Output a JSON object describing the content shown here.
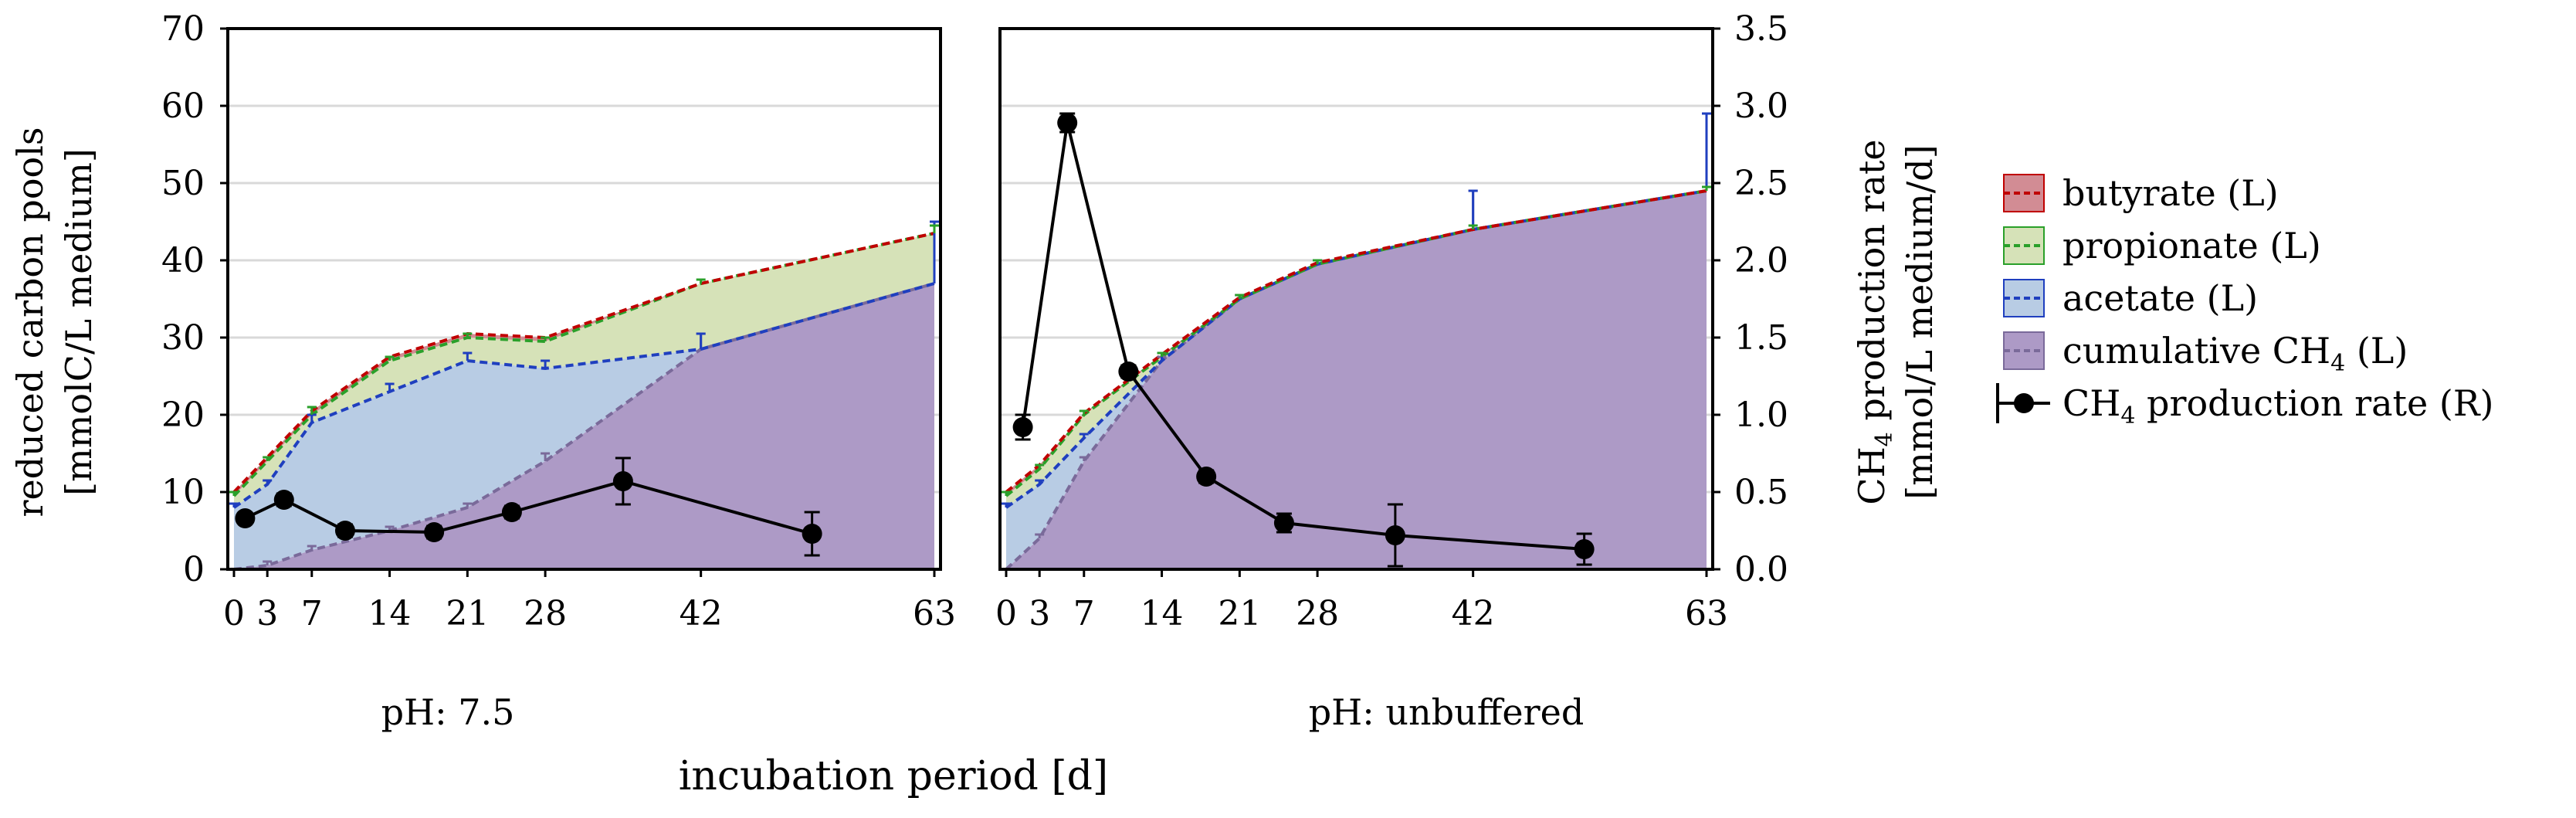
{
  "colors": {
    "butyrate_fill": "#d28c94",
    "butyrate_line": "#c00000",
    "propionate_fill": "#d6e2b8",
    "propionate_line": "#2aa02a",
    "acetate_fill": "#b8cce4",
    "acetate_line": "#1f3fbf",
    "ch4_fill": "#ad9ac6",
    "ch4_line": "#7a6a9a",
    "rate": "#000000",
    "grid": "#d9d9d9"
  },
  "chart_data": {
    "type": "area",
    "xlabel": "incubation period [d]",
    "ylabel_left": [
      "reduced carbon pools",
      "[mmolC/L medium]"
    ],
    "ylabel_right": [
      "CH4 production rate",
      "[mmol/L medium/d]"
    ],
    "ylabel_right_parts": {
      "l1_pre": "CH",
      "l1_sub": "4",
      "l1_post": " production rate",
      "l2": "[mmol/L medium/d]"
    },
    "xlim": [
      0,
      63
    ],
    "ylim_left": [
      0,
      70
    ],
    "ylim_right": [
      0,
      3.5
    ],
    "xticks": [
      0,
      3,
      7,
      14,
      21,
      28,
      42,
      63
    ],
    "xtick_labels": [
      "0",
      "3",
      "7",
      "14",
      "21",
      "28",
      "42",
      "63"
    ],
    "yticks_left": [
      0,
      10,
      20,
      30,
      40,
      50,
      60,
      70
    ],
    "ytick_labels_left": [
      "0",
      "10",
      "20",
      "30",
      "40",
      "50",
      "60",
      "70"
    ],
    "yticks_right": [
      0,
      0.5,
      1,
      1.5,
      2,
      2.5,
      3,
      3.5
    ],
    "ytick_labels_right": [
      "0.0",
      "0.5",
      "1.0",
      "1.5",
      "2.0",
      "2.5",
      "3.0",
      "3.5"
    ],
    "legend": [
      {
        "key": "butyrate",
        "pre": "butyrate (L)",
        "sub": "",
        "post": ""
      },
      {
        "key": "propionate",
        "pre": "propionate (L)",
        "sub": "",
        "post": ""
      },
      {
        "key": "acetate",
        "pre": "acetate (L)",
        "sub": "",
        "post": ""
      },
      {
        "key": "ch4",
        "pre": "cumulative CH",
        "sub": "4",
        "post": " (L)"
      },
      {
        "key": "rate",
        "pre": "CH",
        "sub": "4",
        "post": " production rate (R)"
      }
    ],
    "panels": [
      {
        "subtitle": "pH: 7.5",
        "x": [
          0,
          3,
          7,
          14,
          21,
          28,
          42,
          63
        ],
        "ch4_cum": [
          0,
          0.5,
          2.5,
          5,
          8,
          14,
          28.5,
          37
        ],
        "acetate_cum": [
          8,
          11,
          19,
          23,
          27,
          26,
          28.5,
          37
        ],
        "propionate_cum": [
          9.5,
          14,
          20,
          27,
          30,
          29.5,
          37,
          43.5
        ],
        "butyrate_cum": [
          10,
          14.5,
          20.5,
          27.5,
          30.5,
          30,
          37,
          43.5
        ],
        "ch4_err": [
          0,
          0.5,
          0.5,
          0.5,
          0.5,
          1,
          2,
          8
        ],
        "acetate_err": [
          0.5,
          0.5,
          1,
          1,
          1,
          1,
          2,
          8
        ],
        "propionate_err": [
          0.5,
          0.5,
          1,
          0.5,
          0.5,
          0.5,
          0.5,
          1
        ],
        "rate_x": [
          1,
          4.5,
          10,
          18,
          25,
          35,
          52
        ],
        "rate_y": [
          0.33,
          0.45,
          0.25,
          0.24,
          0.37,
          0.57,
          0.23
        ],
        "rate_err": [
          0.03,
          0.04,
          0.04,
          0.04,
          0.04,
          0.15,
          0.14
        ]
      },
      {
        "subtitle": "pH: unbuffered",
        "x": [
          0,
          3,
          7,
          14,
          21,
          28,
          42,
          63
        ],
        "ch4_cum": [
          0,
          4,
          14,
          27,
          35,
          39.5,
          44,
          49
        ],
        "acetate_cum": [
          8,
          11,
          17,
          27,
          35,
          39.5,
          44,
          49
        ],
        "propionate_cum": [
          9.5,
          13,
          20,
          27.5,
          35,
          39.5,
          44,
          49
        ],
        "butyrate_cum": [
          10,
          13.5,
          20.2,
          27.8,
          35.2,
          39.7,
          44,
          49
        ],
        "ch4_err": [
          0,
          0.5,
          0.5,
          0.5,
          0.5,
          0.5,
          5,
          10
        ],
        "acetate_err": [
          0.5,
          0.5,
          0.5,
          1,
          0.5,
          0.5,
          5,
          10
        ],
        "propionate_err": [
          0.5,
          0.5,
          0.5,
          0.5,
          0.5,
          0.5,
          0.5,
          0.5
        ],
        "rate_x": [
          1.5,
          5.5,
          11,
          18,
          25,
          35,
          52
        ],
        "rate_y": [
          0.92,
          2.89,
          1.28,
          0.6,
          0.3,
          0.22,
          0.13
        ],
        "rate_err": [
          0.08,
          0.06,
          0.04,
          0.04,
          0.06,
          0.2,
          0.1
        ]
      }
    ]
  }
}
